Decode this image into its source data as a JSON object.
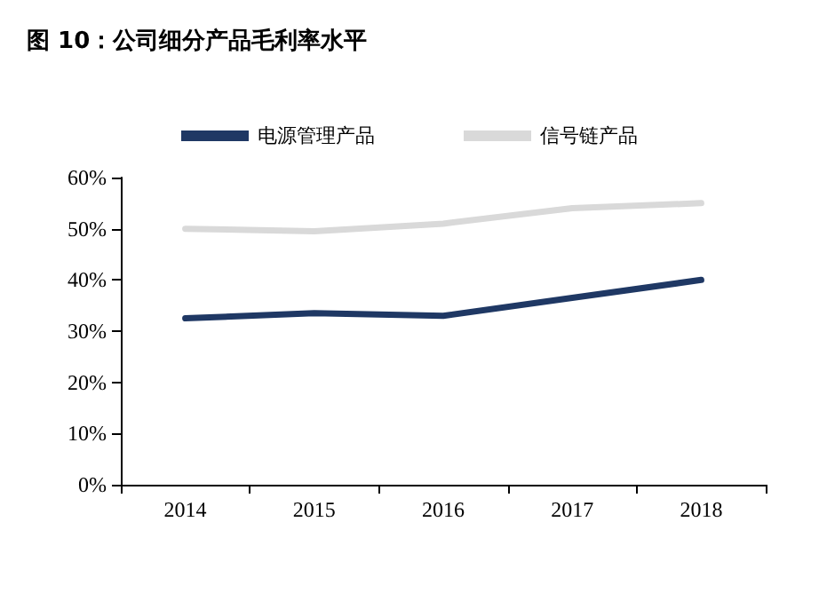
{
  "chart_data": {
    "type": "line",
    "title": "图 10：公司细分产品毛利率水平",
    "categories": [
      "2014",
      "2015",
      "2016",
      "2017",
      "2018"
    ],
    "series": [
      {
        "name": "电源管理产品",
        "color": "#1f3864",
        "values": [
          32.5,
          33.5,
          33,
          36.5,
          40
        ]
      },
      {
        "name": "信号链产品",
        "color": "#d9d9d9",
        "values": [
          50,
          49.5,
          51,
          54,
          55
        ]
      }
    ],
    "ylim": [
      0,
      60
    ],
    "yticks": [
      {
        "value": 0,
        "label": "0%"
      },
      {
        "value": 10,
        "label": "10%"
      },
      {
        "value": 20,
        "label": "20%"
      },
      {
        "value": 30,
        "label": "30%"
      },
      {
        "value": 40,
        "label": "40%"
      },
      {
        "value": 50,
        "label": "50%"
      },
      {
        "value": 60,
        "label": "60%"
      }
    ],
    "grid": false,
    "legend": "top",
    "marker": "none",
    "line_style": "solid"
  }
}
